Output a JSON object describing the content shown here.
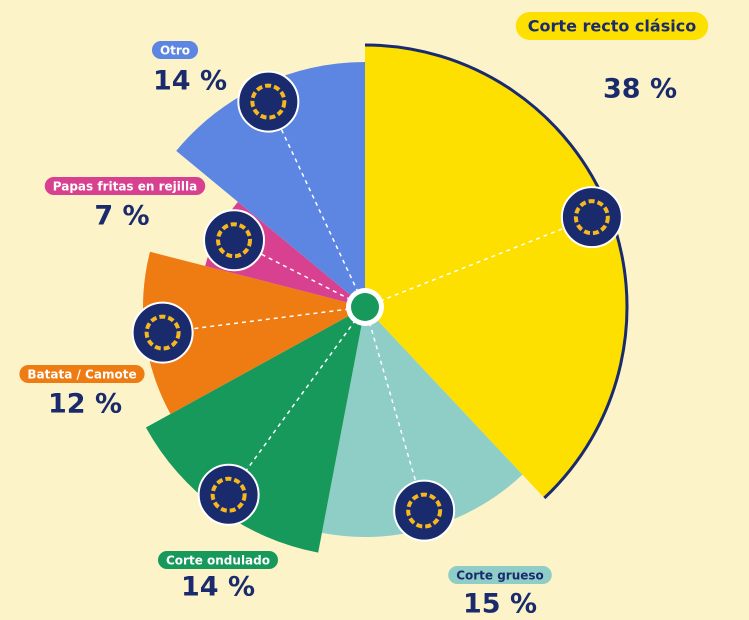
{
  "chart_data": {
    "type": "pie",
    "categories": [
      "Corte recto clásico",
      "Corte grueso",
      "Corte ondulado",
      "Batata / Camote",
      "Papas fritas en rejilla",
      "Otro"
    ],
    "values": [
      38,
      15,
      14,
      12,
      7,
      14
    ],
    "value_labels": [
      "38 %",
      "15 %",
      "14 %",
      "12 %",
      "7 %",
      "14 %"
    ],
    "colors": [
      "#fddf00",
      "#8fcdc7",
      "#17995c",
      "#ee7c12",
      "#d8418f",
      "#5c86e2"
    ]
  }
}
